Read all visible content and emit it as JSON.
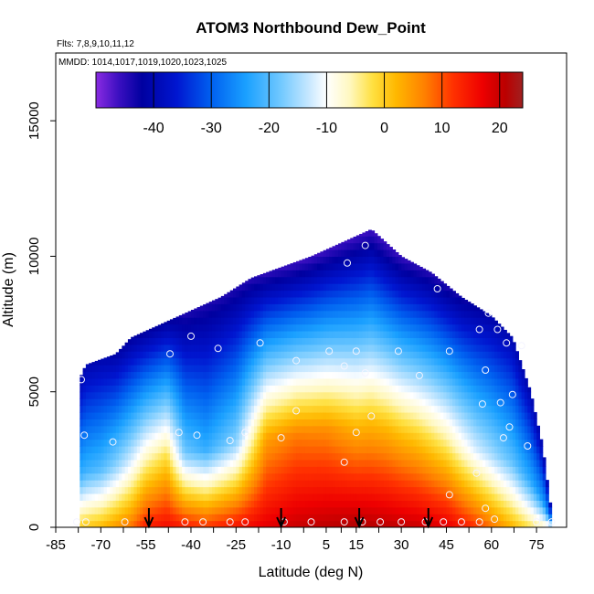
{
  "chart_data": {
    "type": "heatmap",
    "title": "ATOM3 Northbound Dew_Point",
    "flights_note": "Flts: 7,8,9,10,11,12",
    "dates_note": "MMDD: 1014,1017,1019,1020,1023,1025",
    "xlabel": "Latitude (deg N)",
    "ylabel": "Altitude (m)",
    "xlim": [
      -85,
      85
    ],
    "ylim": [
      0,
      17500
    ],
    "x_ticks": [
      -85,
      -70,
      -55,
      -40,
      -25,
      -10,
      5,
      15,
      30,
      45,
      60,
      75
    ],
    "x_tick_labels": [
      "-85",
      "-70",
      "-55",
      "-40",
      "-25",
      "-10",
      "5",
      "15",
      "30",
      "45",
      "60",
      "75"
    ],
    "y_ticks": [
      0,
      5000,
      10000,
      15000
    ],
    "y_tick_labels": [
      "0",
      "5000",
      "10000",
      "15000"
    ],
    "colorbar": {
      "range": [
        -50,
        24
      ],
      "ticks": [
        -40,
        -30,
        -20,
        -10,
        0,
        10,
        20
      ],
      "tick_labels": [
        "-40",
        "-30",
        "-20",
        "-10",
        "0",
        "10",
        "20"
      ],
      "stops": [
        {
          "value": -50,
          "color": "#8a2be2"
        },
        {
          "value": -46,
          "color": "#3a0fc0"
        },
        {
          "value": -42,
          "color": "#0000a0"
        },
        {
          "value": -36,
          "color": "#0016d0"
        },
        {
          "value": -30,
          "color": "#0060f0"
        },
        {
          "value": -24,
          "color": "#1aa0ff"
        },
        {
          "value": -18,
          "color": "#70c8ff"
        },
        {
          "value": -13,
          "color": "#c8e8ff"
        },
        {
          "value": -10,
          "color": "#ffffff"
        },
        {
          "value": -6,
          "color": "#fff8c0"
        },
        {
          "value": -2,
          "color": "#ffe040"
        },
        {
          "value": 2,
          "color": "#ffb800"
        },
        {
          "value": 7,
          "color": "#ff8000"
        },
        {
          "value": 12,
          "color": "#ff3000"
        },
        {
          "value": 17,
          "color": "#ee0000"
        },
        {
          "value": 21,
          "color": "#bb0000"
        },
        {
          "value": 24,
          "color": "#a02020"
        }
      ]
    },
    "profile_ceiling": [
      {
        "lat": -77,
        "alt": 5500
      },
      {
        "lat": -75,
        "alt": 6000
      },
      {
        "lat": -65,
        "alt": 6400
      },
      {
        "lat": -60,
        "alt": 7000
      },
      {
        "lat": -50,
        "alt": 7500
      },
      {
        "lat": -40,
        "alt": 8000
      },
      {
        "lat": -30,
        "alt": 8500
      },
      {
        "lat": -20,
        "alt": 9200
      },
      {
        "lat": -10,
        "alt": 9600
      },
      {
        "lat": 0,
        "alt": 10000
      },
      {
        "lat": 10,
        "alt": 10500
      },
      {
        "lat": 20,
        "alt": 11000
      },
      {
        "lat": 30,
        "alt": 10000
      },
      {
        "lat": 40,
        "alt": 9400
      },
      {
        "lat": 50,
        "alt": 8500
      },
      {
        "lat": 60,
        "alt": 7800
      },
      {
        "lat": 67,
        "alt": 7000
      },
      {
        "lat": 70,
        "alt": 6000
      },
      {
        "lat": 73,
        "alt": 5000
      },
      {
        "lat": 77,
        "alt": 3000
      },
      {
        "lat": 80,
        "alt": 500
      }
    ],
    "dew_point_profile": [
      {
        "lat": -77,
        "surface": 0,
        "mid": -22,
        "upper": -40
      },
      {
        "lat": -70,
        "surface": 2,
        "mid": -20,
        "upper": -40
      },
      {
        "lat": -60,
        "surface": 8,
        "mid": -12,
        "upper": -42
      },
      {
        "lat": -55,
        "surface": 14,
        "mid": -6,
        "upper": -42
      },
      {
        "lat": -48,
        "surface": 16,
        "mid": -2,
        "upper": -42
      },
      {
        "lat": -42,
        "surface": 14,
        "mid": -18,
        "upper": -44
      },
      {
        "lat": -35,
        "surface": 12,
        "mid": -22,
        "upper": -44
      },
      {
        "lat": -25,
        "surface": 15,
        "mid": -16,
        "upper": -44
      },
      {
        "lat": -15,
        "surface": 18,
        "mid": 4,
        "upper": -45
      },
      {
        "lat": -5,
        "surface": 20,
        "mid": 7,
        "upper": -46
      },
      {
        "lat": 5,
        "surface": 21,
        "mid": 6,
        "upper": -46
      },
      {
        "lat": 15,
        "surface": 22,
        "mid": 2,
        "upper": -46
      },
      {
        "lat": 25,
        "surface": 21,
        "mid": 2,
        "upper": -46
      },
      {
        "lat": 35,
        "surface": 20,
        "mid": 0,
        "upper": -45
      },
      {
        "lat": 45,
        "surface": 18,
        "mid": -4,
        "upper": -44
      },
      {
        "lat": 55,
        "surface": 12,
        "mid": -12,
        "upper": -42
      },
      {
        "lat": 65,
        "surface": 4,
        "mid": -18,
        "upper": -40
      },
      {
        "lat": 75,
        "surface": -4,
        "mid": -24,
        "upper": -40
      },
      {
        "lat": 80,
        "surface": -8,
        "mid": -26,
        "upper": -40
      }
    ],
    "sample_points": [
      {
        "lat": -76.5,
        "alt": 5450
      },
      {
        "lat": -75.5,
        "alt": 3400
      },
      {
        "lat": -66,
        "alt": 3150
      },
      {
        "lat": -47,
        "alt": 6400
      },
      {
        "lat": -40,
        "alt": 7050
      },
      {
        "lat": -31,
        "alt": 6600
      },
      {
        "lat": -17,
        "alt": 6800
      },
      {
        "lat": -5,
        "alt": 6150
      },
      {
        "lat": 6,
        "alt": 6500
      },
      {
        "lat": 11,
        "alt": 5950
      },
      {
        "lat": 15,
        "alt": 6500
      },
      {
        "lat": 18,
        "alt": 5700
      },
      {
        "lat": 12,
        "alt": 9750
      },
      {
        "lat": 18,
        "alt": 10400
      },
      {
        "lat": 29,
        "alt": 6500
      },
      {
        "lat": 36,
        "alt": 5600
      },
      {
        "lat": 42,
        "alt": 8800
      },
      {
        "lat": 46,
        "alt": 6500
      },
      {
        "lat": 56,
        "alt": 7300
      },
      {
        "lat": 59,
        "alt": 7900
      },
      {
        "lat": 58,
        "alt": 5800
      },
      {
        "lat": 62,
        "alt": 7300
      },
      {
        "lat": 65,
        "alt": 6800
      },
      {
        "lat": 70,
        "alt": 6700
      },
      {
        "lat": 57,
        "alt": 4550
      },
      {
        "lat": 63,
        "alt": 4600
      },
      {
        "lat": 67,
        "alt": 4900
      },
      {
        "lat": 66,
        "alt": 3700
      },
      {
        "lat": 64,
        "alt": 3300
      },
      {
        "lat": 72,
        "alt": 3000
      },
      {
        "lat": 55,
        "alt": 2000
      },
      {
        "lat": 46,
        "alt": 1200
      },
      {
        "lat": -44,
        "alt": 3500
      },
      {
        "lat": -38,
        "alt": 3400
      },
      {
        "lat": -27,
        "alt": 3200
      },
      {
        "lat": -22,
        "alt": 3500
      },
      {
        "lat": -10,
        "alt": 3300
      },
      {
        "lat": -5,
        "alt": 4300
      },
      {
        "lat": 15,
        "alt": 3500
      },
      {
        "lat": 20,
        "alt": 4100
      },
      {
        "lat": 11,
        "alt": 2400
      },
      {
        "lat": -78,
        "alt": 200
      },
      {
        "lat": -75,
        "alt": 200
      },
      {
        "lat": -62,
        "alt": 200
      },
      {
        "lat": -42,
        "alt": 200
      },
      {
        "lat": -36,
        "alt": 200
      },
      {
        "lat": -27,
        "alt": 200
      },
      {
        "lat": -22,
        "alt": 200
      },
      {
        "lat": -9,
        "alt": 200
      },
      {
        "lat": 0,
        "alt": 200
      },
      {
        "lat": 11,
        "alt": 200
      },
      {
        "lat": 17,
        "alt": 200
      },
      {
        "lat": 23,
        "alt": 200
      },
      {
        "lat": 30,
        "alt": 200
      },
      {
        "lat": 38,
        "alt": 200
      },
      {
        "lat": 44,
        "alt": 200
      },
      {
        "lat": 50,
        "alt": 200
      },
      {
        "lat": 56,
        "alt": 200
      },
      {
        "lat": 61,
        "alt": 300
      },
      {
        "lat": 75,
        "alt": 200
      },
      {
        "lat": 80,
        "alt": 200
      },
      {
        "lat": 58,
        "alt": 700
      }
    ],
    "flight_markers_lat": [
      -54,
      -10,
      16,
      39
    ]
  }
}
